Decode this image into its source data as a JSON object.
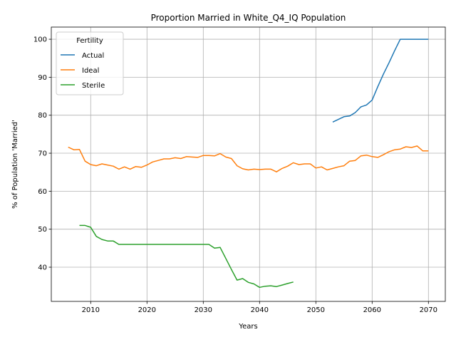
{
  "chart_data": {
    "type": "line",
    "title": "Proportion Married in White_Q4_IQ Population",
    "xlabel": "Years",
    "ylabel": "% of Population 'Married'",
    "xlim": [
      2003,
      2073
    ],
    "ylim": [
      31,
      103.2
    ],
    "xticks": [
      2010,
      2020,
      2030,
      2040,
      2050,
      2060,
      2070
    ],
    "yticks": [
      40,
      50,
      60,
      70,
      80,
      90,
      100
    ],
    "grid": true,
    "legend": {
      "title": "Fertility",
      "placement": "upper-left"
    },
    "series": [
      {
        "name": "Actual",
        "color": "#1f77b4",
        "x": [
          2053,
          2054,
          2055,
          2056,
          2057,
          2058,
          2059,
          2060,
          2061,
          2062,
          2063,
          2064,
          2065,
          2066,
          2067,
          2068,
          2069,
          2070
        ],
        "y": [
          78.2,
          78.9,
          79.6,
          79.8,
          80.7,
          82.2,
          82.7,
          84.0,
          87.5,
          90.8,
          93.8,
          97.0,
          100,
          100,
          100,
          100,
          100,
          100
        ]
      },
      {
        "name": "Ideal",
        "color": "#ff7f0e",
        "x": [
          2006,
          2007,
          2008,
          2009,
          2010,
          2011,
          2012,
          2013,
          2014,
          2015,
          2016,
          2017,
          2018,
          2019,
          2020,
          2021,
          2022,
          2023,
          2024,
          2025,
          2026,
          2027,
          2028,
          2029,
          2030,
          2031,
          2032,
          2033,
          2034,
          2035,
          2036,
          2037,
          2038,
          2039,
          2040,
          2041,
          2042,
          2043,
          2044,
          2045,
          2046,
          2047,
          2048,
          2049,
          2050,
          2051,
          2052,
          2053,
          2054,
          2055,
          2056,
          2057,
          2058,
          2059,
          2060,
          2061,
          2062,
          2063,
          2064,
          2065,
          2066,
          2067,
          2068,
          2069,
          2070
        ],
        "y": [
          71.6,
          70.9,
          71.0,
          67.9,
          67.0,
          66.7,
          67.2,
          66.9,
          66.6,
          65.8,
          66.4,
          65.8,
          66.5,
          66.3,
          66.9,
          67.7,
          68.1,
          68.5,
          68.5,
          68.8,
          68.6,
          69.1,
          69.0,
          68.9,
          69.4,
          69.4,
          69.3,
          69.9,
          69.0,
          68.6,
          66.7,
          65.9,
          65.6,
          65.8,
          65.7,
          65.8,
          65.8,
          65.1,
          66.0,
          66.6,
          67.5,
          67.0,
          67.2,
          67.2,
          66.1,
          66.4,
          65.6,
          66.0,
          66.4,
          66.7,
          67.9,
          68.1,
          69.3,
          69.5,
          69.1,
          68.9,
          69.6,
          70.4,
          70.9,
          71.1,
          71.7,
          71.5,
          71.9,
          70.6,
          70.6
        ]
      },
      {
        "name": "Sterile",
        "color": "#2ca02c",
        "x": [
          2008,
          2009,
          2010,
          2011,
          2012,
          2013,
          2014,
          2015,
          2016,
          2017,
          2018,
          2019,
          2020,
          2021,
          2022,
          2023,
          2024,
          2025,
          2026,
          2027,
          2028,
          2029,
          2030,
          2031,
          2032,
          2033,
          2034,
          2035,
          2036,
          2037,
          2038,
          2039,
          2040,
          2041,
          2042,
          2043,
          2044,
          2045,
          2046
        ],
        "y": [
          51.0,
          51.0,
          50.5,
          48.1,
          47.3,
          46.9,
          46.9,
          46.0,
          46.0,
          46.0,
          46.0,
          46.0,
          46.0,
          46.0,
          46.0,
          46.0,
          46.0,
          46.0,
          46.0,
          46.0,
          46.0,
          46.0,
          46.0,
          46.0,
          45.0,
          45.2,
          42.3,
          39.4,
          36.6,
          37.0,
          36.0,
          35.6,
          34.7,
          35.0,
          35.1,
          34.9,
          35.3,
          35.7,
          36.1
        ]
      }
    ]
  }
}
